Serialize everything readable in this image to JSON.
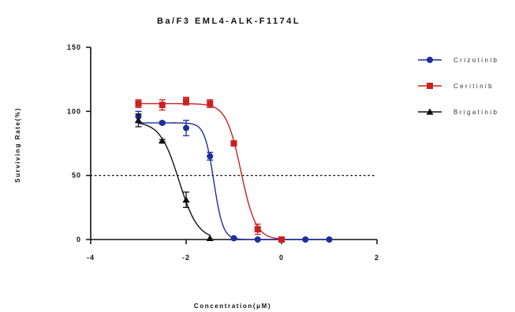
{
  "chart_data": {
    "type": "scatter",
    "title": "Ba/F3 EML4-ALK-F1174L",
    "xlabel": "Concentration(μM)",
    "ylabel": "Surviving Rate(%)",
    "xlim": [
      -4,
      2
    ],
    "ylim": [
      0,
      150
    ],
    "x_ticks": [
      -4,
      -2,
      0,
      2
    ],
    "y_ticks": [
      0,
      50,
      100,
      150
    ],
    "x_tick_labels": [
      "-4",
      "-2",
      "0",
      "2"
    ],
    "y_tick_labels": [
      "0",
      "50",
      "100",
      "150"
    ],
    "reference_line": {
      "y": 50,
      "style": "dotted"
    },
    "legend_position": "right",
    "series": [
      {
        "name": "Crizotinib",
        "color": "#1f2d9e",
        "marker": "circle",
        "points": [
          {
            "x": -3.0,
            "y": 96,
            "err": 4
          },
          {
            "x": -2.5,
            "y": 91,
            "err": 1
          },
          {
            "x": -2.0,
            "y": 87,
            "err": 6
          },
          {
            "x": -1.5,
            "y": 65,
            "err": 3
          },
          {
            "x": -1.0,
            "y": 1,
            "err": 0
          },
          {
            "x": -0.5,
            "y": 0,
            "err": 0
          },
          {
            "x": 0.0,
            "y": 0,
            "err": 0
          },
          {
            "x": 0.5,
            "y": 0,
            "err": 0
          },
          {
            "x": 1.0,
            "y": 0,
            "err": 0
          }
        ],
        "fit": {
          "top": 91,
          "bottom": 0,
          "logEC50": -1.42,
          "hill": -4.5
        }
      },
      {
        "name": "Ceritinib",
        "color": "#cc1f1f",
        "marker": "square",
        "points": [
          {
            "x": -3.0,
            "y": 106,
            "err": 3
          },
          {
            "x": -2.5,
            "y": 105,
            "err": 4
          },
          {
            "x": -2.0,
            "y": 108,
            "err": 3
          },
          {
            "x": -1.5,
            "y": 106,
            "err": 3
          },
          {
            "x": -1.0,
            "y": 75,
            "err": 2
          },
          {
            "x": -0.5,
            "y": 8,
            "err": 4
          },
          {
            "x": 0.0,
            "y": 0,
            "err": 0
          }
        ],
        "fit": {
          "top": 106,
          "bottom": 0,
          "logEC50": -0.85,
          "hill": -2.8
        }
      },
      {
        "name": "Brigatinib",
        "color": "#111111",
        "marker": "triangle",
        "points": [
          {
            "x": -3.0,
            "y": 93,
            "err": 5
          },
          {
            "x": -2.5,
            "y": 77,
            "err": 1
          },
          {
            "x": -2.0,
            "y": 31,
            "err": 6
          },
          {
            "x": -1.5,
            "y": 1,
            "err": 0
          }
        ],
        "fit": {
          "top": 92,
          "bottom": 0,
          "logEC50": -2.15,
          "hill": -2.2
        }
      }
    ]
  }
}
